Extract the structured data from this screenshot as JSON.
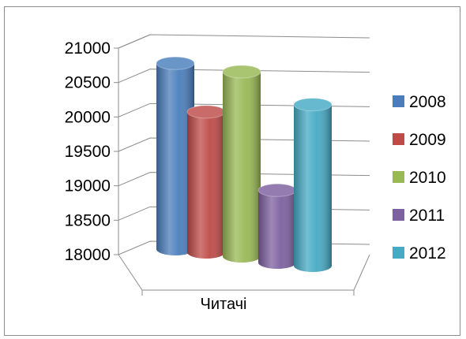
{
  "chart_data": {
    "type": "bar",
    "categories": [
      "Читачі"
    ],
    "series": [
      {
        "name": "2008",
        "values": [
          20700
        ],
        "color": "#4a7ebb"
      },
      {
        "name": "2009",
        "values": [
          20040
        ],
        "color": "#be4b48"
      },
      {
        "name": "2010",
        "values": [
          20680
        ],
        "color": "#98b954"
      },
      {
        "name": "2011",
        "values": [
          19050
        ],
        "color": "#7d60a0"
      },
      {
        "name": "2012",
        "values": [
          20340
        ],
        "color": "#46aac5"
      }
    ],
    "ylim": [
      18000,
      21000
    ],
    "yticks": [
      "18000",
      "18500",
      "19000",
      "19500",
      "20000",
      "20500",
      "21000"
    ],
    "grid": true,
    "style": "3d-cylinder",
    "legend": "right"
  }
}
